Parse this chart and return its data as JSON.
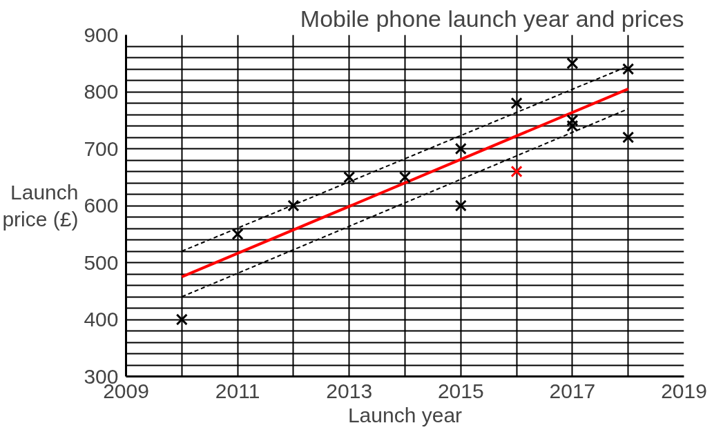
{
  "chart_data": {
    "type": "scatter",
    "title": "Mobile phone launch year and prices",
    "xlabel": "Launch year",
    "ylabel": "Launch\nprice (£)",
    "xlim": [
      2009,
      2019
    ],
    "ylim": [
      300,
      900
    ],
    "xticks": [
      2009,
      {
        "value": 2010,
        "label": null
      },
      2011,
      {
        "value": 2012,
        "label": null
      },
      2013,
      {
        "value": 2014,
        "label": null
      },
      2015,
      {
        "value": 2016,
        "label": null
      },
      2017,
      {
        "value": 2018,
        "label": null
      },
      2019
    ],
    "yticks": [
      300,
      {
        "value": 320,
        "label": null
      },
      {
        "value": 340,
        "label": null
      },
      {
        "value": 360,
        "label": null
      },
      {
        "value": 380,
        "label": null
      },
      400,
      {
        "value": 420,
        "label": null
      },
      {
        "value": 440,
        "label": null
      },
      {
        "value": 460,
        "label": null
      },
      {
        "value": 480,
        "label": null
      },
      500,
      {
        "value": 520,
        "label": null
      },
      {
        "value": 540,
        "label": null
      },
      {
        "value": 560,
        "label": null
      },
      {
        "value": 580,
        "label": null
      },
      600,
      {
        "value": 620,
        "label": null
      },
      {
        "value": 640,
        "label": null
      },
      {
        "value": 660,
        "label": null
      },
      {
        "value": 680,
        "label": null
      },
      700,
      {
        "value": 720,
        "label": null
      },
      {
        "value": 740,
        "label": null
      },
      {
        "value": 760,
        "label": null
      },
      {
        "value": 780,
        "label": null
      },
      800,
      {
        "value": 820,
        "label": null
      },
      {
        "value": 840,
        "label": null
      },
      {
        "value": 860,
        "label": null
      },
      {
        "value": 880,
        "label": null
      },
      900
    ],
    "grid": true,
    "series": [
      {
        "color": "#000000",
        "marker": "cross",
        "x": [
          2010,
          2011,
          2012,
          2013,
          2014,
          2015,
          2015,
          2016,
          2017,
          2017,
          2017,
          2018,
          2018
        ],
        "values": [
          400,
          550,
          600,
          650,
          650,
          700,
          600,
          780,
          850,
          750,
          740,
          840,
          720
        ]
      },
      {
        "color": "#ff0000",
        "marker": "cross",
        "x": [
          2016
        ],
        "values": [
          660
        ]
      },
      {
        "type": "line",
        "color": "#ff0000",
        "line_style": "solid",
        "x": [
          2010,
          2018
        ],
        "values": [
          475,
          805
        ]
      },
      {
        "type": "line",
        "color": "#000000",
        "line_style": "dashed",
        "x": [
          2010,
          2018
        ],
        "values": [
          520,
          845
        ]
      },
      {
        "type": "line",
        "color": "#000000",
        "line_style": "dashed",
        "x": [
          2010,
          2018
        ],
        "values": [
          440,
          770
        ]
      }
    ]
  }
}
